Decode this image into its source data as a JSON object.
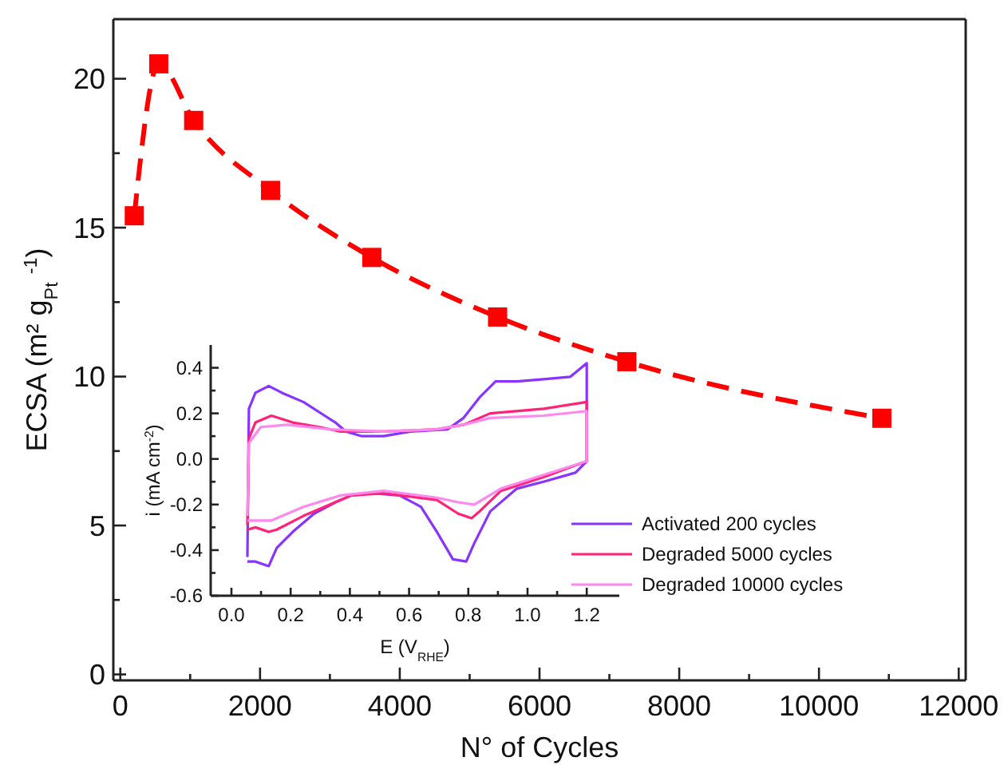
{
  "chart_data": [
    {
      "type": "line",
      "xlabel": "N° of Cycles",
      "ylabel": "ECSA (m² g$_{Pt}$ $^{-1}$)",
      "xlim": [
        -100,
        12100
      ],
      "ylim": [
        -0.2,
        22
      ],
      "xticks": [
        0,
        {
          "value": 1000,
          "label": null
        },
        2000,
        {
          "value": 3000,
          "label": null
        },
        4000,
        {
          "value": 5000,
          "label": null
        },
        6000,
        {
          "value": 7000,
          "label": null
        },
        8000,
        {
          "value": 9000,
          "label": null
        },
        10000,
        {
          "value": 11000,
          "label": null
        },
        12000
      ],
      "yticks": [
        0,
        {
          "value": 2.5,
          "label": null
        },
        5,
        {
          "value": 7.5,
          "label": null
        },
        10,
        {
          "value": 12.5,
          "label": null
        },
        15,
        {
          "value": 17.5,
          "label": null
        },
        20
      ],
      "grid": false,
      "legend": false,
      "marker": "square",
      "line_style": "dashed",
      "series": [
        {
          "color": "#ff0000",
          "x": [
            200,
            550,
            1050,
            2150,
            3600,
            5400,
            7250,
            10900
          ],
          "values": [
            15.4,
            20.5,
            18.6,
            16.25,
            14.0,
            12.0,
            10.5,
            8.6
          ]
        }
      ]
    },
    {
      "type": "line",
      "xlabel": "E (V$_{RHE}$)",
      "ylabel": "i (mA cm$^{-2}$)",
      "xlim": [
        -0.07,
        1.31
      ],
      "ylim": [
        -0.6,
        0.5
      ],
      "xticks": [
        {
          "value": 0,
          "label": "0.0"
        },
        {
          "value": 0.1,
          "label": null
        },
        0.2,
        {
          "value": 0.3,
          "label": null
        },
        0.4,
        {
          "value": 0.5,
          "label": null
        },
        0.6,
        {
          "value": 0.7,
          "label": null
        },
        0.8,
        {
          "value": 0.9,
          "label": null
        },
        {
          "value": 1,
          "label": "1.0"
        },
        {
          "value": 1.1,
          "label": null
        },
        1.2
      ],
      "yticks": [
        -0.6,
        {
          "value": -0.5,
          "label": null
        },
        -0.4,
        {
          "value": -0.3,
          "label": null
        },
        -0.2,
        {
          "value": -0.1,
          "label": null
        },
        {
          "value": 0,
          "label": "0.0"
        },
        {
          "value": 0.1,
          "label": null
        },
        0.2,
        {
          "value": 0.3,
          "label": null
        },
        0.4
      ],
      "grid": false,
      "legend": "bottom right",
      "marker": "none",
      "line_style": "solid",
      "series": [
        {
          "name": "Activated 200 cycles",
          "color": "#8833ff",
          "x": [
            0.054,
            0.059,
            0.081,
            0.126,
            0.171,
            0.243,
            0.315,
            0.351,
            0.387,
            0.441,
            0.514,
            0.604,
            0.73,
            0.784,
            0.838,
            0.892,
            0.964,
            1.054,
            1.144,
            1.2,
            1.2,
            1.162,
            1.054,
            0.964,
            0.874,
            0.82,
            0.793,
            0.748,
            0.694,
            0.64,
            0.568,
            0.477,
            0.405,
            0.351,
            0.279,
            0.207,
            0.153,
            0.126,
            0.081,
            0.054
          ],
          "values": [
            -0.43,
            0.22,
            0.29,
            0.32,
            0.29,
            0.25,
            0.19,
            0.16,
            0.12,
            0.1,
            0.1,
            0.12,
            0.13,
            0.18,
            0.27,
            0.34,
            0.34,
            0.35,
            0.36,
            0.42,
            -0.01,
            -0.06,
            -0.1,
            -0.13,
            -0.23,
            -0.37,
            -0.45,
            -0.44,
            -0.32,
            -0.21,
            -0.16,
            -0.15,
            -0.16,
            -0.19,
            -0.24,
            -0.32,
            -0.39,
            -0.47,
            -0.45,
            -0.45
          ]
        },
        {
          "name": "Degraded 5000 cycles",
          "color": "#ff2277",
          "x": [
            0.054,
            0.059,
            0.081,
            0.135,
            0.207,
            0.297,
            0.369,
            0.514,
            0.694,
            0.784,
            0.874,
            1.054,
            1.2,
            1.2,
            1.054,
            0.91,
            0.838,
            0.811,
            0.766,
            0.694,
            0.514,
            0.405,
            0.333,
            0.243,
            0.153,
            0.126,
            0.081,
            0.054
          ],
          "values": [
            -0.29,
            0.09,
            0.16,
            0.19,
            0.16,
            0.14,
            0.12,
            0.12,
            0.13,
            0.15,
            0.2,
            0.22,
            0.25,
            -0.01,
            -0.08,
            -0.14,
            -0.23,
            -0.26,
            -0.24,
            -0.18,
            -0.15,
            -0.16,
            -0.2,
            -0.25,
            -0.31,
            -0.32,
            -0.3,
            -0.31
          ]
        },
        {
          "name": "Degraded 10000 cycles",
          "color": "#ff88ee",
          "x": [
            0.054,
            0.059,
            0.099,
            0.189,
            0.333,
            0.514,
            0.694,
            0.784,
            0.874,
            1.054,
            1.2,
            1.2,
            1.054,
            0.91,
            0.82,
            0.766,
            0.694,
            0.514,
            0.369,
            0.243,
            0.135,
            0.081,
            0.054
          ],
          "values": [
            -0.25,
            0.07,
            0.14,
            0.15,
            0.13,
            0.12,
            0.13,
            0.15,
            0.18,
            0.19,
            0.21,
            -0.01,
            -0.07,
            -0.13,
            -0.2,
            -0.19,
            -0.17,
            -0.14,
            -0.16,
            -0.21,
            -0.27,
            -0.27,
            -0.27
          ]
        }
      ]
    }
  ]
}
